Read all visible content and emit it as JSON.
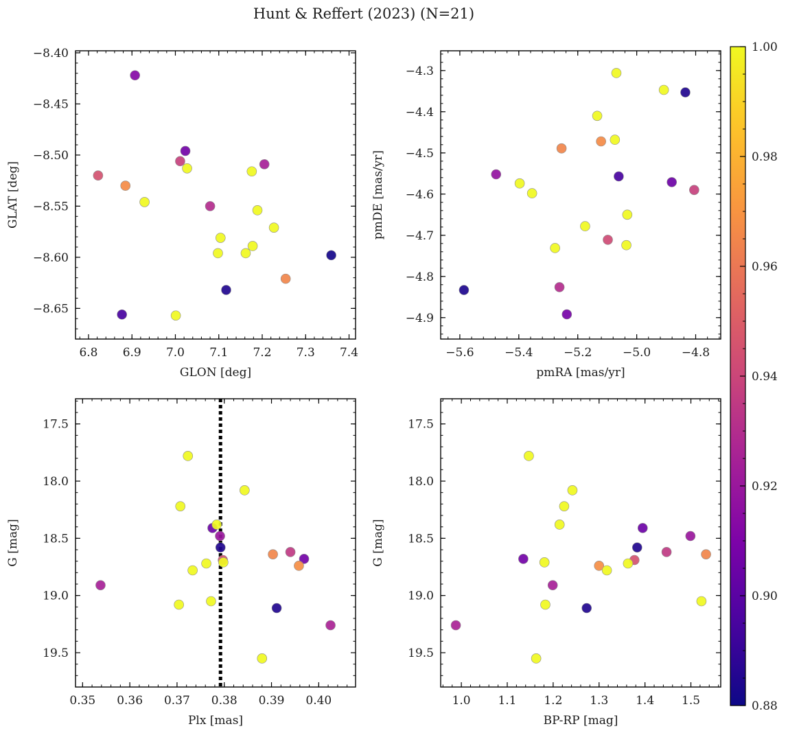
{
  "figure_title": "Hunt & Reffert (2023) (N=21)",
  "colorbar": {
    "colormap": "plasma",
    "vmin": 0.88,
    "vmax": 1.0,
    "ticks": [
      0.88,
      0.9,
      0.92,
      0.94,
      0.96,
      0.98,
      1.0
    ],
    "tick_labels": [
      "0.88",
      "0.90",
      "0.92",
      "0.94",
      "0.96",
      "0.98",
      "1.00"
    ]
  },
  "chart_data": [
    {
      "type": "scatter",
      "name": "glon-glat",
      "xlabel": "GLON [deg]",
      "ylabel": "GLAT [deg]",
      "xlim": [
        6.77,
        7.415
      ],
      "ylim": [
        -8.68,
        -8.398
      ],
      "y_inverted": false,
      "xticks": [
        6.8,
        6.9,
        7.0,
        7.1,
        7.2,
        7.3,
        7.4
      ],
      "xtick_labels": [
        "6.8",
        "6.9",
        "7.0",
        "7.1",
        "7.2",
        "7.3",
        "7.4"
      ],
      "yticks": [
        -8.4,
        -8.45,
        -8.5,
        -8.55,
        -8.6,
        -8.65
      ],
      "ytick_labels": [
        "−8.40",
        "−8.45",
        "−8.50",
        "−8.55",
        "−8.60",
        "−8.65"
      ],
      "points": [
        {
          "x": 6.907,
          "y": -8.422,
          "c": 0.913
        },
        {
          "x": 7.023,
          "y": -8.496,
          "c": 0.907
        },
        {
          "x": 7.011,
          "y": -8.506,
          "c": 0.938
        },
        {
          "x": 7.027,
          "y": -8.513,
          "c": 1.0
        },
        {
          "x": 7.205,
          "y": -8.509,
          "c": 0.925
        },
        {
          "x": 6.822,
          "y": -8.52,
          "c": 0.945
        },
        {
          "x": 7.176,
          "y": -8.516,
          "c": 1.0
        },
        {
          "x": 6.885,
          "y": -8.53,
          "c": 0.967
        },
        {
          "x": 6.929,
          "y": -8.546,
          "c": 1.0
        },
        {
          "x": 7.08,
          "y": -8.55,
          "c": 0.93
        },
        {
          "x": 7.189,
          "y": -8.554,
          "c": 1.0
        },
        {
          "x": 7.227,
          "y": -8.571,
          "c": 1.0
        },
        {
          "x": 7.104,
          "y": -8.581,
          "c": 1.0
        },
        {
          "x": 7.178,
          "y": -8.589,
          "c": 1.0
        },
        {
          "x": 7.098,
          "y": -8.596,
          "c": 1.0
        },
        {
          "x": 7.162,
          "y": -8.596,
          "c": 1.0
        },
        {
          "x": 7.359,
          "y": -8.598,
          "c": 0.882
        },
        {
          "x": 7.254,
          "y": -8.621,
          "c": 0.965
        },
        {
          "x": 7.117,
          "y": -8.632,
          "c": 0.885
        },
        {
          "x": 6.877,
          "y": -8.656,
          "c": 0.895
        },
        {
          "x": 7.001,
          "y": -8.657,
          "c": 1.0
        }
      ]
    },
    {
      "type": "scatter",
      "name": "pmra-pmde",
      "xlabel": "pmRA [mas/yr]",
      "ylabel": "pmDE [mas/yr]",
      "xlim": [
        -5.665,
        -4.715
      ],
      "ylim": [
        -4.952,
        -4.252
      ],
      "y_inverted": false,
      "xticks": [
        -5.6,
        -5.4,
        -5.2,
        -5.0,
        -4.8
      ],
      "xtick_labels": [
        "−5.6",
        "−5.4",
        "−5.2",
        "−5.0",
        "−4.8"
      ],
      "yticks": [
        -4.3,
        -4.4,
        -4.5,
        -4.6,
        -4.7,
        -4.8,
        -4.9
      ],
      "ytick_labels": [
        "−4.3",
        "−4.4",
        "−4.5",
        "−4.6",
        "−4.7",
        "−4.8",
        "−4.9"
      ],
      "points": [
        {
          "x": -5.069,
          "y": -4.306,
          "c": 1.0
        },
        {
          "x": -4.908,
          "y": -4.347,
          "c": 1.0
        },
        {
          "x": -4.835,
          "y": -4.353,
          "c": 0.885
        },
        {
          "x": -5.134,
          "y": -4.41,
          "c": 1.0
        },
        {
          "x": -5.074,
          "y": -4.468,
          "c": 1.0
        },
        {
          "x": -5.121,
          "y": -4.472,
          "c": 0.967
        },
        {
          "x": -5.255,
          "y": -4.489,
          "c": 0.965
        },
        {
          "x": -5.477,
          "y": -4.552,
          "c": 0.918
        },
        {
          "x": -5.061,
          "y": -4.557,
          "c": 0.895
        },
        {
          "x": -5.397,
          "y": -4.574,
          "c": 1.0
        },
        {
          "x": -4.881,
          "y": -4.571,
          "c": 0.905
        },
        {
          "x": -4.805,
          "y": -4.59,
          "c": 0.938
        },
        {
          "x": -5.355,
          "y": -4.598,
          "c": 1.0
        },
        {
          "x": -5.032,
          "y": -4.65,
          "c": 1.0
        },
        {
          "x": -5.175,
          "y": -4.678,
          "c": 1.0
        },
        {
          "x": -5.098,
          "y": -4.711,
          "c": 0.942
        },
        {
          "x": -5.035,
          "y": -4.724,
          "c": 1.0
        },
        {
          "x": -5.277,
          "y": -4.731,
          "c": 1.0
        },
        {
          "x": -5.586,
          "y": -4.833,
          "c": 0.884
        },
        {
          "x": -5.262,
          "y": -4.826,
          "c": 0.93
        },
        {
          "x": -5.237,
          "y": -4.892,
          "c": 0.908
        }
      ]
    },
    {
      "type": "scatter",
      "name": "plx-g",
      "xlabel": "Plx [mas]",
      "ylabel": "G [mag]",
      "xlim": [
        0.3485,
        0.4078
      ],
      "ylim": [
        19.8,
        17.28
      ],
      "y_inverted": true,
      "vertical_line": {
        "x": 0.3792,
        "style": "dotted",
        "color": "#000000"
      },
      "xticks": [
        0.35,
        0.36,
        0.37,
        0.38,
        0.39,
        0.4
      ],
      "xtick_labels": [
        "0.35",
        "0.36",
        "0.37",
        "0.38",
        "0.39",
        "0.40"
      ],
      "yticks": [
        17.5,
        18.0,
        18.5,
        19.0,
        19.5
      ],
      "ytick_labels": [
        "17.5",
        "18.0",
        "18.5",
        "19.0",
        "19.5"
      ],
      "points": [
        {
          "x": 0.3723,
          "y": 17.78,
          "c": 1.0
        },
        {
          "x": 0.3843,
          "y": 18.08,
          "c": 1.0
        },
        {
          "x": 0.3707,
          "y": 18.22,
          "c": 1.0
        },
        {
          "x": 0.3775,
          "y": 18.41,
          "c": 0.905
        },
        {
          "x": 0.3784,
          "y": 18.38,
          "c": 1.0
        },
        {
          "x": 0.3791,
          "y": 18.48,
          "c": 0.92
        },
        {
          "x": 0.3792,
          "y": 18.58,
          "c": 0.885
        },
        {
          "x": 0.3903,
          "y": 18.64,
          "c": 0.965
        },
        {
          "x": 0.394,
          "y": 18.62,
          "c": 0.935
        },
        {
          "x": 0.3797,
          "y": 18.69,
          "c": 0.945
        },
        {
          "x": 0.3969,
          "y": 18.68,
          "c": 0.907
        },
        {
          "x": 0.3798,
          "y": 18.71,
          "c": 1.0
        },
        {
          "x": 0.3762,
          "y": 18.72,
          "c": 1.0
        },
        {
          "x": 0.3958,
          "y": 18.74,
          "c": 0.968
        },
        {
          "x": 0.3733,
          "y": 18.78,
          "c": 1.0
        },
        {
          "x": 0.3538,
          "y": 18.91,
          "c": 0.925
        },
        {
          "x": 0.3772,
          "y": 19.05,
          "c": 1.0
        },
        {
          "x": 0.3704,
          "y": 19.08,
          "c": 1.0
        },
        {
          "x": 0.3911,
          "y": 19.11,
          "c": 0.885
        },
        {
          "x": 0.4025,
          "y": 19.26,
          "c": 0.926
        },
        {
          "x": 0.388,
          "y": 19.55,
          "c": 1.0
        }
      ]
    },
    {
      "type": "scatter",
      "name": "bprp-g",
      "xlabel": "BP-RP [mag]",
      "ylabel": "G [mag]",
      "xlim": [
        0.955,
        1.565
      ],
      "ylim": [
        19.8,
        17.28
      ],
      "y_inverted": true,
      "xticks": [
        1.0,
        1.1,
        1.2,
        1.3,
        1.4,
        1.5
      ],
      "xtick_labels": [
        "1.0",
        "1.1",
        "1.2",
        "1.3",
        "1.4",
        "1.5"
      ],
      "yticks": [
        17.5,
        18.0,
        18.5,
        19.0,
        19.5
      ],
      "ytick_labels": [
        "17.5",
        "18.0",
        "18.5",
        "19.0",
        "19.5"
      ],
      "points": [
        {
          "x": 1.147,
          "y": 17.78,
          "c": 1.0
        },
        {
          "x": 1.242,
          "y": 18.08,
          "c": 1.0
        },
        {
          "x": 1.224,
          "y": 18.22,
          "c": 1.0
        },
        {
          "x": 1.214,
          "y": 18.38,
          "c": 1.0
        },
        {
          "x": 1.395,
          "y": 18.41,
          "c": 0.905
        },
        {
          "x": 1.499,
          "y": 18.48,
          "c": 0.92
        },
        {
          "x": 1.383,
          "y": 18.58,
          "c": 0.885
        },
        {
          "x": 1.447,
          "y": 18.62,
          "c": 0.935
        },
        {
          "x": 1.533,
          "y": 18.64,
          "c": 0.965
        },
        {
          "x": 1.135,
          "y": 18.68,
          "c": 0.907
        },
        {
          "x": 1.377,
          "y": 18.69,
          "c": 0.945
        },
        {
          "x": 1.181,
          "y": 18.71,
          "c": 1.0
        },
        {
          "x": 1.363,
          "y": 18.72,
          "c": 1.0
        },
        {
          "x": 1.3,
          "y": 18.74,
          "c": 0.968
        },
        {
          "x": 1.317,
          "y": 18.78,
          "c": 1.0
        },
        {
          "x": 1.199,
          "y": 18.91,
          "c": 0.925
        },
        {
          "x": 1.523,
          "y": 19.05,
          "c": 1.0
        },
        {
          "x": 1.183,
          "y": 19.08,
          "c": 1.0
        },
        {
          "x": 1.273,
          "y": 19.11,
          "c": 0.885
        },
        {
          "x": 0.988,
          "y": 19.26,
          "c": 0.926
        },
        {
          "x": 1.163,
          "y": 19.55,
          "c": 1.0
        }
      ]
    }
  ]
}
